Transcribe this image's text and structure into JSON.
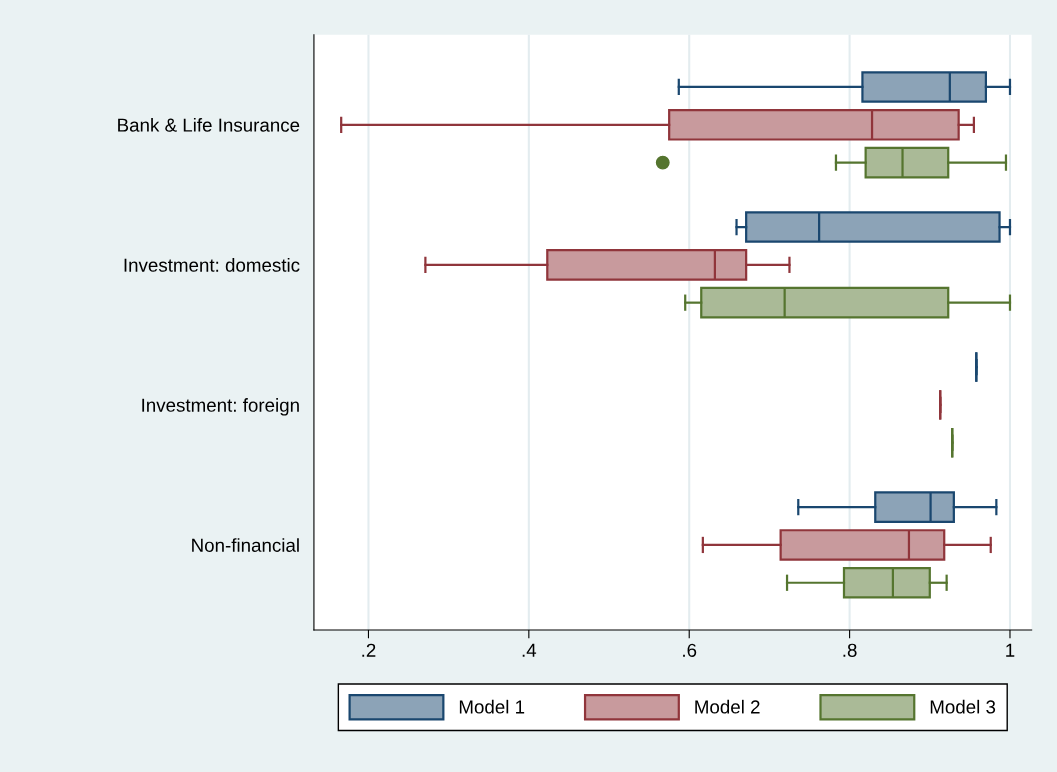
{
  "chart_data": {
    "type": "box",
    "orientation": "horizontal",
    "categories": [
      "Bank & Life Insurance",
      "Investment: domestic",
      "Investment: foreign",
      "Non-financial"
    ],
    "series": [
      {
        "name": "Model 1",
        "color": "#1a476f",
        "boxes": [
          {
            "low": 0.587,
            "q1": 0.816,
            "median": 0.925,
            "q3": 0.97,
            "high": 1.0
          },
          {
            "low": 0.659,
            "q1": 0.671,
            "median": 0.762,
            "q3": 0.987,
            "high": 1.0
          },
          {
            "low": 0.958,
            "q1": 0.958,
            "median": 0.958,
            "q3": 0.958,
            "high": 0.958
          },
          {
            "low": 0.736,
            "q1": 0.832,
            "median": 0.901,
            "q3": 0.93,
            "high": 0.983
          }
        ]
      },
      {
        "name": "Model 2",
        "color": "#90353b",
        "boxes": [
          {
            "low": 0.166,
            "q1": 0.575,
            "median": 0.828,
            "q3": 0.936,
            "high": 0.955
          },
          {
            "low": 0.271,
            "q1": 0.423,
            "median": 0.632,
            "q3": 0.671,
            "high": 0.725
          },
          {
            "low": 0.913,
            "q1": 0.913,
            "median": 0.913,
            "q3": 0.913,
            "high": 0.913
          },
          {
            "low": 0.617,
            "q1": 0.714,
            "median": 0.874,
            "q3": 0.918,
            "high": 0.976
          }
        ]
      },
      {
        "name": "Model 3",
        "color": "#55752f",
        "boxes": [
          {
            "low": 0.783,
            "q1": 0.82,
            "median": 0.866,
            "q3": 0.923,
            "high": 0.995,
            "outliers": [
              0.567
            ]
          },
          {
            "low": 0.595,
            "q1": 0.615,
            "median": 0.719,
            "q3": 0.923,
            "high": 1.0
          },
          {
            "low": 0.928,
            "q1": 0.928,
            "median": 0.928,
            "q3": 0.928,
            "high": 0.928
          },
          {
            "low": 0.722,
            "q1": 0.793,
            "median": 0.854,
            "q3": 0.9,
            "high": 0.921
          }
        ]
      }
    ],
    "xlim": [
      0.132,
      1.027
    ],
    "xticks": [
      {
        "value": 0.2,
        "label": ".2"
      },
      {
        "value": 0.4,
        "label": ".4"
      },
      {
        "value": 0.6,
        "label": ".6"
      },
      {
        "value": 0.8,
        "label": ".8"
      },
      1
    ],
    "grid": "x",
    "legend": "bottom"
  }
}
